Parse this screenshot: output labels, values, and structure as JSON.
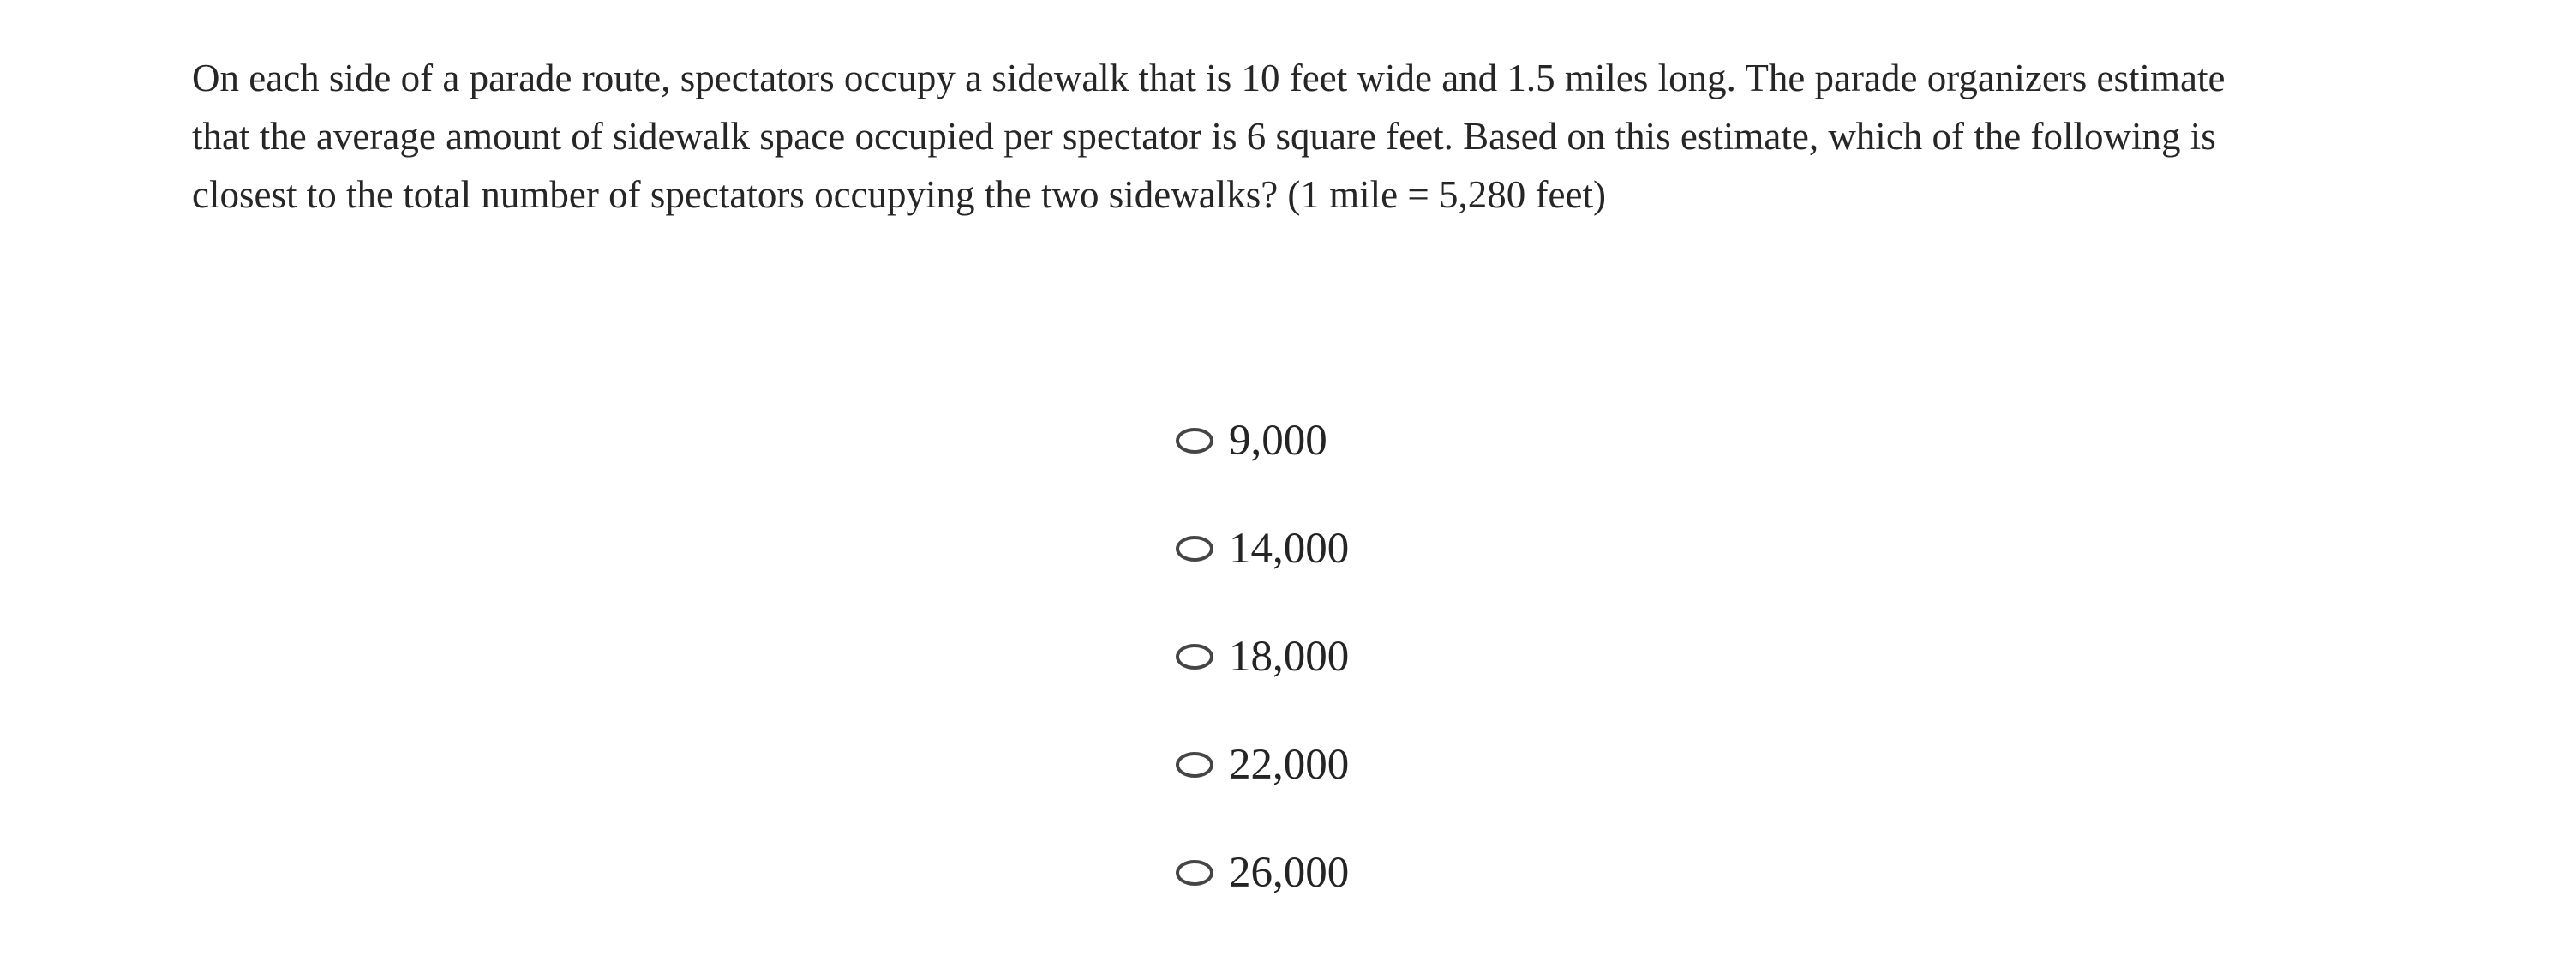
{
  "colors": {
    "background": "#ffffff",
    "question_text": "#262626",
    "option_text": "#242424",
    "radio_border": "#454545"
  },
  "question": {
    "lines": [
      "On each side of a parade route, spectators occupy a sidewalk that is 10 feet wide and 1.5 miles long. The parade organizers estimate",
      "that the average amount of sidewalk space occupied per spectator is 6 square feet. Based on this estimate, which of the following is",
      "closest to the total number of spectators occupying the two sidewalks? (1 mile = 5,280 feet)"
    ]
  },
  "options": [
    {
      "label": "9,000",
      "selected": false
    },
    {
      "label": "14,000",
      "selected": false
    },
    {
      "label": "18,000",
      "selected": false
    },
    {
      "label": "22,000",
      "selected": false
    },
    {
      "label": "26,000",
      "selected": false
    }
  ]
}
